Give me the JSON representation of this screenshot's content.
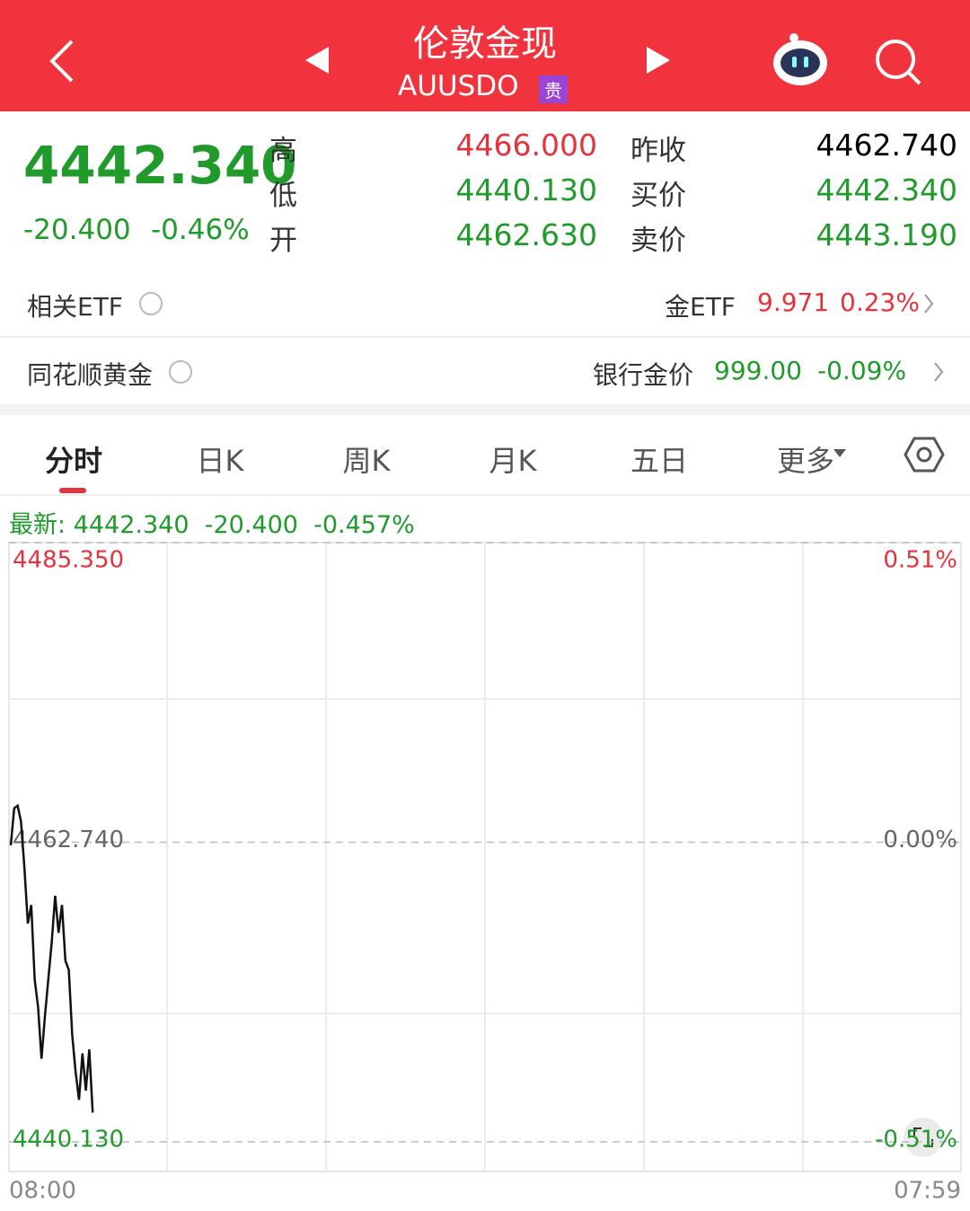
{
  "header": {
    "title": "伦敦金现",
    "symbol": "AUUSDO",
    "badge": "贵"
  },
  "quote": {
    "price": "4442.340",
    "change": "-20.400",
    "change_pct": "-0.46%",
    "left_stats": [
      {
        "label": "高",
        "value": "4466.000"
      },
      {
        "label": "低",
        "value": "4440.130"
      },
      {
        "label": "开",
        "value": "4462.630"
      }
    ],
    "right_stats": [
      {
        "label": "昨收",
        "value": "4462.740"
      },
      {
        "label": "买价",
        "value": "4442.340"
      },
      {
        "label": "卖价",
        "value": "4443.190"
      }
    ]
  },
  "rows": [
    {
      "label": "相关ETF",
      "item": "金ETF",
      "value": "9.971",
      "pct": "0.23%"
    },
    {
      "label": "同花顺黄金",
      "item": "银行金价",
      "value": "999.00",
      "pct": "-0.09%"
    }
  ],
  "tabs": [
    "分时",
    "日K",
    "周K",
    "月K",
    "五日",
    "更多"
  ],
  "latest": {
    "label": "最新:",
    "price": "4442.340",
    "change": "-20.400",
    "pct": "-0.457%"
  },
  "chart_data": {
    "type": "line",
    "series": [
      {
        "color": "#111111",
        "values": [
          4462.5,
          4465.3,
          4465.5,
          4464.3,
          4460.8,
          4456.6,
          4458.0,
          4452.4,
          4450.3,
          4446.4,
          4449.6,
          4452.4,
          4455.2,
          4458.7,
          4455.9,
          4458.0,
          4453.8,
          4453.1,
          4448.2,
          4445.4,
          4443.3,
          4446.8,
          4444.0,
          4447.1,
          4442.34
        ]
      }
    ],
    "ylim": [
      4440.13,
      4485.35
    ],
    "yticks": [
      {
        "value": 4485.35,
        "label": "4485.350"
      },
      {
        "value": 4462.74,
        "label": "4462.740"
      },
      {
        "value": 4440.13,
        "label": "4440.130"
      }
    ],
    "y2lim": [
      -0.51,
      0.51
    ],
    "y2ticks": [
      {
        "value": 0.51,
        "label": "0.51%"
      },
      {
        "value": 0,
        "label": "0.00%"
      },
      {
        "value": -0.51,
        "label": "-0.51%"
      }
    ],
    "x_labels": [
      "08:00",
      "07:59"
    ]
  }
}
